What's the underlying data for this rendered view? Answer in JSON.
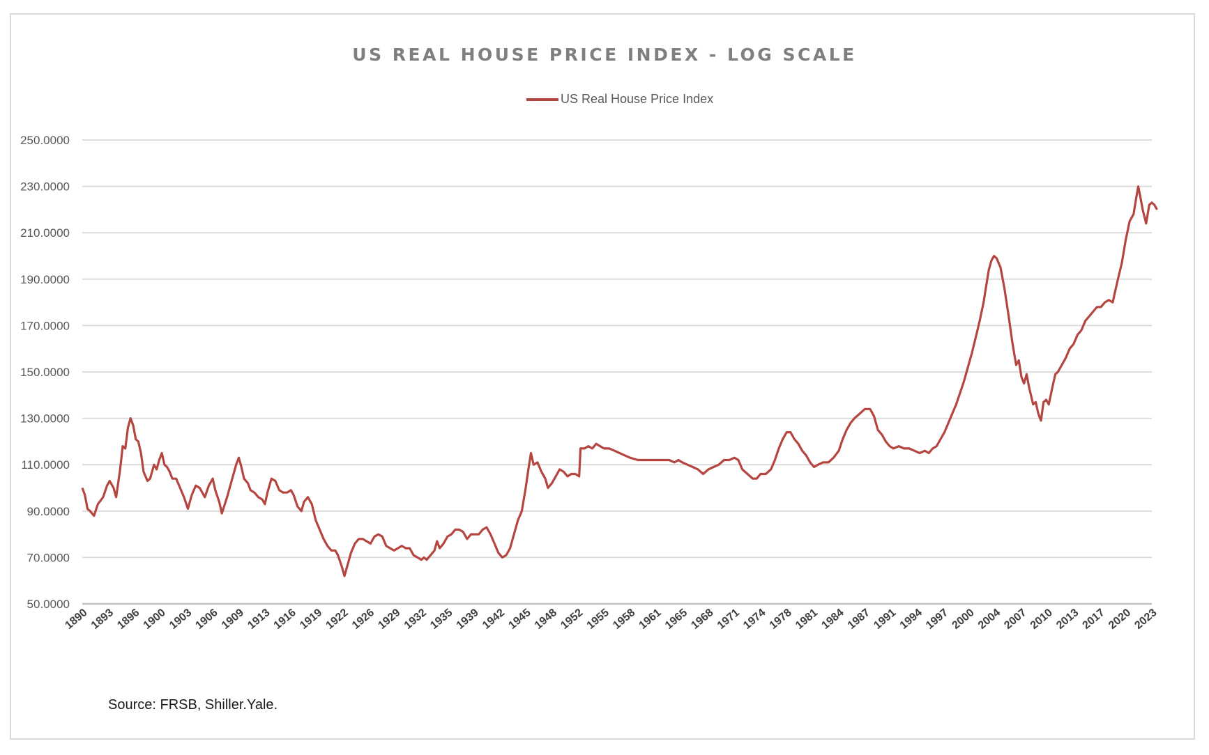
{
  "chart_data": {
    "type": "line",
    "title": "US REAL HOUSE PRICE INDEX - LOG SCALE",
    "xlabel": "",
    "ylabel": "",
    "legend": {
      "position": "top-center",
      "entries": [
        "US Real House Price Index"
      ]
    },
    "grid": true,
    "ylim": [
      50,
      250
    ],
    "yticks": [
      "50.0000",
      "70.0000",
      "90.0000",
      "110.0000",
      "130.0000",
      "150.0000",
      "170.0000",
      "190.0000",
      "210.0000",
      "230.0000",
      "250.0000"
    ],
    "ytick_values": [
      50,
      70,
      90,
      110,
      130,
      150,
      170,
      190,
      210,
      230,
      250
    ],
    "categories": [
      "1890",
      "1893",
      "1896",
      "1900",
      "1903",
      "1906",
      "1909",
      "1913",
      "1916",
      "1919",
      "1922",
      "1926",
      "1929",
      "1932",
      "1935",
      "1939",
      "1942",
      "1945",
      "1948",
      "1952",
      "1955",
      "1958",
      "1961",
      "1965",
      "1968",
      "1971",
      "1974",
      "1978",
      "1981",
      "1984",
      "1987",
      "1991",
      "1994",
      "1997",
      "2000",
      "2004",
      "2007",
      "2010",
      "2013",
      "2017",
      "2020",
      "2023"
    ],
    "series": [
      {
        "name": "US Real House Price Index",
        "color": "#b5453f",
        "points_note": "x = fractional category index (0 = 1890, last = 2023), y = index value",
        "points": [
          [
            0.0,
            100
          ],
          [
            0.1,
            97
          ],
          [
            0.2,
            91
          ],
          [
            0.3,
            90
          ],
          [
            0.45,
            88
          ],
          [
            0.6,
            93
          ],
          [
            0.8,
            96
          ],
          [
            0.95,
            101
          ],
          [
            1.05,
            103
          ],
          [
            1.2,
            100
          ],
          [
            1.3,
            96
          ],
          [
            1.45,
            108
          ],
          [
            1.55,
            118
          ],
          [
            1.65,
            117
          ],
          [
            1.75,
            126
          ],
          [
            1.85,
            130
          ],
          [
            1.95,
            127
          ],
          [
            2.05,
            121
          ],
          [
            2.15,
            120
          ],
          [
            2.25,
            115
          ],
          [
            2.35,
            107
          ],
          [
            2.5,
            103
          ],
          [
            2.6,
            104
          ],
          [
            2.75,
            110
          ],
          [
            2.85,
            108
          ],
          [
            2.95,
            112
          ],
          [
            3.05,
            115
          ],
          [
            3.15,
            110
          ],
          [
            3.25,
            109
          ],
          [
            3.35,
            107
          ],
          [
            3.45,
            104
          ],
          [
            3.6,
            104
          ],
          [
            3.75,
            100
          ],
          [
            3.9,
            96
          ],
          [
            4.05,
            91
          ],
          [
            4.2,
            97
          ],
          [
            4.35,
            101
          ],
          [
            4.5,
            100
          ],
          [
            4.6,
            98
          ],
          [
            4.7,
            96
          ],
          [
            4.85,
            101
          ],
          [
            5.0,
            104
          ],
          [
            5.1,
            99
          ],
          [
            5.25,
            94
          ],
          [
            5.35,
            89
          ],
          [
            5.55,
            96
          ],
          [
            5.75,
            104
          ],
          [
            5.9,
            110
          ],
          [
            6.0,
            113
          ],
          [
            6.1,
            109
          ],
          [
            6.2,
            104
          ],
          [
            6.35,
            102
          ],
          [
            6.45,
            99
          ],
          [
            6.6,
            98
          ],
          [
            6.75,
            96
          ],
          [
            6.9,
            95
          ],
          [
            7.0,
            93
          ],
          [
            7.1,
            98
          ],
          [
            7.25,
            104
          ],
          [
            7.4,
            103
          ],
          [
            7.55,
            99
          ],
          [
            7.7,
            98
          ],
          [
            7.85,
            98
          ],
          [
            8.0,
            99
          ],
          [
            8.1,
            97
          ],
          [
            8.25,
            92
          ],
          [
            8.4,
            90
          ],
          [
            8.5,
            94
          ],
          [
            8.65,
            96
          ],
          [
            8.8,
            93
          ],
          [
            8.95,
            86
          ],
          [
            9.1,
            82
          ],
          [
            9.25,
            78
          ],
          [
            9.4,
            75
          ],
          [
            9.55,
            73
          ],
          [
            9.7,
            73
          ],
          [
            9.8,
            71
          ],
          [
            9.95,
            66
          ],
          [
            10.05,
            62
          ],
          [
            10.15,
            66
          ],
          [
            10.3,
            72
          ],
          [
            10.45,
            76
          ],
          [
            10.6,
            78
          ],
          [
            10.75,
            78
          ],
          [
            10.9,
            77
          ],
          [
            11.05,
            76
          ],
          [
            11.2,
            79
          ],
          [
            11.35,
            80
          ],
          [
            11.5,
            79
          ],
          [
            11.65,
            75
          ],
          [
            11.8,
            74
          ],
          [
            11.95,
            73
          ],
          [
            12.1,
            74
          ],
          [
            12.25,
            75
          ],
          [
            12.4,
            74
          ],
          [
            12.55,
            74
          ],
          [
            12.7,
            71
          ],
          [
            12.85,
            70
          ],
          [
            13.0,
            69
          ],
          [
            13.1,
            70
          ],
          [
            13.2,
            69
          ],
          [
            13.35,
            71
          ],
          [
            13.5,
            73
          ],
          [
            13.6,
            77
          ],
          [
            13.7,
            74
          ],
          [
            13.85,
            76
          ],
          [
            14.0,
            79
          ],
          [
            14.15,
            80
          ],
          [
            14.3,
            82
          ],
          [
            14.45,
            82
          ],
          [
            14.6,
            81
          ],
          [
            14.75,
            78
          ],
          [
            14.9,
            80
          ],
          [
            15.05,
            80
          ],
          [
            15.2,
            80
          ],
          [
            15.35,
            82
          ],
          [
            15.5,
            83
          ],
          [
            15.65,
            80
          ],
          [
            15.8,
            76
          ],
          [
            15.95,
            72
          ],
          [
            16.1,
            70
          ],
          [
            16.25,
            71
          ],
          [
            16.4,
            74
          ],
          [
            16.55,
            80
          ],
          [
            16.7,
            86
          ],
          [
            16.85,
            90
          ],
          [
            17.0,
            100
          ],
          [
            17.1,
            108
          ],
          [
            17.2,
            115
          ],
          [
            17.3,
            110
          ],
          [
            17.45,
            111
          ],
          [
            17.6,
            107
          ],
          [
            17.75,
            104
          ],
          [
            17.85,
            100
          ],
          [
            18.0,
            102
          ],
          [
            18.15,
            105
          ],
          [
            18.3,
            108
          ],
          [
            18.45,
            107
          ],
          [
            18.6,
            105
          ],
          [
            18.75,
            106
          ],
          [
            18.9,
            106
          ],
          [
            19.05,
            105
          ],
          [
            19.1,
            117
          ],
          [
            19.25,
            117
          ],
          [
            19.4,
            118
          ],
          [
            19.55,
            117
          ],
          [
            19.7,
            119
          ],
          [
            19.85,
            118
          ],
          [
            20.0,
            117
          ],
          [
            20.2,
            117
          ],
          [
            20.4,
            116
          ],
          [
            20.6,
            115
          ],
          [
            20.8,
            114
          ],
          [
            21.0,
            113
          ],
          [
            21.3,
            112
          ],
          [
            21.6,
            112
          ],
          [
            21.9,
            112
          ],
          [
            22.2,
            112
          ],
          [
            22.5,
            112
          ],
          [
            22.7,
            111
          ],
          [
            22.85,
            112
          ],
          [
            23.0,
            111
          ],
          [
            23.2,
            110
          ],
          [
            23.4,
            109
          ],
          [
            23.6,
            108
          ],
          [
            23.8,
            106
          ],
          [
            24.0,
            108
          ],
          [
            24.2,
            109
          ],
          [
            24.4,
            110
          ],
          [
            24.6,
            112
          ],
          [
            24.8,
            112
          ],
          [
            25.0,
            113
          ],
          [
            25.15,
            112
          ],
          [
            25.3,
            108
          ],
          [
            25.5,
            106
          ],
          [
            25.7,
            104
          ],
          [
            25.85,
            104
          ],
          [
            26.0,
            106
          ],
          [
            26.2,
            106
          ],
          [
            26.4,
            108
          ],
          [
            26.55,
            112
          ],
          [
            26.7,
            117
          ],
          [
            26.85,
            121
          ],
          [
            27.0,
            124
          ],
          [
            27.15,
            124
          ],
          [
            27.3,
            121
          ],
          [
            27.45,
            119
          ],
          [
            27.6,
            116
          ],
          [
            27.75,
            114
          ],
          [
            27.9,
            111
          ],
          [
            28.05,
            109
          ],
          [
            28.2,
            110
          ],
          [
            28.4,
            111
          ],
          [
            28.6,
            111
          ],
          [
            28.8,
            113
          ],
          [
            29.0,
            116
          ],
          [
            29.15,
            121
          ],
          [
            29.3,
            125
          ],
          [
            29.45,
            128
          ],
          [
            29.6,
            130
          ],
          [
            29.8,
            132
          ],
          [
            30.0,
            134
          ],
          [
            30.2,
            134
          ],
          [
            30.35,
            131
          ],
          [
            30.5,
            125
          ],
          [
            30.65,
            123
          ],
          [
            30.8,
            120
          ],
          [
            30.95,
            118
          ],
          [
            31.1,
            117
          ],
          [
            31.3,
            118
          ],
          [
            31.5,
            117
          ],
          [
            31.7,
            117
          ],
          [
            31.9,
            116
          ],
          [
            32.1,
            115
          ],
          [
            32.3,
            116
          ],
          [
            32.45,
            115
          ],
          [
            32.6,
            117
          ],
          [
            32.75,
            118
          ],
          [
            32.9,
            121
          ],
          [
            33.05,
            124
          ],
          [
            33.2,
            128
          ],
          [
            33.35,
            132
          ],
          [
            33.5,
            136
          ],
          [
            33.65,
            141
          ],
          [
            33.8,
            146
          ],
          [
            33.95,
            152
          ],
          [
            34.1,
            158
          ],
          [
            34.25,
            165
          ],
          [
            34.4,
            172
          ],
          [
            34.55,
            180
          ],
          [
            34.65,
            187
          ],
          [
            34.75,
            194
          ],
          [
            34.85,
            198
          ],
          [
            34.95,
            200
          ],
          [
            35.05,
            199
          ],
          [
            35.2,
            195
          ],
          [
            35.35,
            186
          ],
          [
            35.5,
            175
          ],
          [
            35.65,
            163
          ],
          [
            35.8,
            153
          ],
          [
            35.9,
            155
          ],
          [
            36.0,
            148
          ],
          [
            36.1,
            145
          ],
          [
            36.2,
            149
          ],
          [
            36.3,
            143
          ],
          [
            36.45,
            136
          ],
          [
            36.55,
            137
          ],
          [
            36.65,
            132
          ],
          [
            36.75,
            129
          ],
          [
            36.85,
            137
          ],
          [
            36.95,
            138
          ],
          [
            37.05,
            136
          ],
          [
            37.2,
            144
          ],
          [
            37.3,
            149
          ],
          [
            37.4,
            150
          ],
          [
            37.55,
            153
          ],
          [
            37.7,
            156
          ],
          [
            37.85,
            160
          ],
          [
            38.0,
            162
          ],
          [
            38.15,
            166
          ],
          [
            38.3,
            168
          ],
          [
            38.45,
            172
          ],
          [
            38.6,
            174
          ],
          [
            38.75,
            176
          ],
          [
            38.9,
            178
          ],
          [
            39.05,
            178
          ],
          [
            39.2,
            180
          ],
          [
            39.35,
            181
          ],
          [
            39.5,
            180
          ],
          [
            39.6,
            185
          ],
          [
            39.7,
            190
          ],
          [
            39.85,
            197
          ],
          [
            40.0,
            207
          ],
          [
            40.15,
            215
          ],
          [
            40.3,
            218
          ],
          [
            40.4,
            225
          ],
          [
            40.48,
            230
          ],
          [
            40.55,
            226
          ],
          [
            40.65,
            220
          ],
          [
            40.78,
            214
          ],
          [
            40.9,
            222
          ],
          [
            41.0,
            223
          ],
          [
            41.1,
            222
          ],
          [
            41.2,
            220
          ]
        ]
      }
    ],
    "source_note": "Source: FRSB, Shiller.Yale."
  },
  "legend_label": "US Real House Price Index"
}
